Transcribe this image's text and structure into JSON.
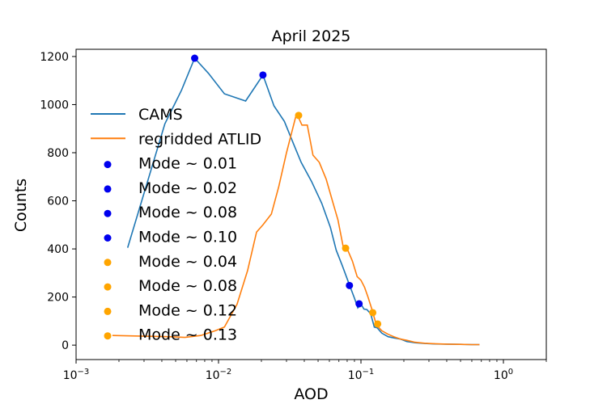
{
  "chart_data": {
    "type": "line",
    "title": "April 2025",
    "xlabel": "AOD",
    "ylabel": "Counts",
    "xscale": "log",
    "xlim": [
      0.001,
      2.0
    ],
    "ylim": [
      -60,
      1230
    ],
    "xticks": [
      {
        "value": 0.001,
        "base": "10",
        "exp": "−3"
      },
      {
        "value": 0.01,
        "base": "10",
        "exp": "−2"
      },
      {
        "value": 0.1,
        "base": "10",
        "exp": "−1"
      },
      {
        "value": 1,
        "base": "10",
        "exp": "0"
      }
    ],
    "yticks": [
      0,
      200,
      400,
      600,
      800,
      1000,
      1200
    ],
    "grid": false,
    "legend_position": "left",
    "series": [
      {
        "name": "CAMS",
        "color": "#1f77b4",
        "x": [
          0.0023,
          0.0031,
          0.0042,
          0.0055,
          0.0068,
          0.0085,
          0.011,
          0.0155,
          0.0205,
          0.0245,
          0.029,
          0.034,
          0.038,
          0.045,
          0.053,
          0.061,
          0.067,
          0.074,
          0.083,
          0.09,
          0.095,
          0.1,
          0.105,
          0.11,
          0.117,
          0.124,
          0.13,
          0.14,
          0.155,
          0.17,
          0.19,
          0.21,
          0.24,
          0.28,
          0.33,
          0.4,
          0.5,
          0.6,
          0.68
        ],
        "y": [
          405,
          660,
          920,
          1060,
          1193,
          1130,
          1045,
          1015,
          1123,
          995,
          930,
          830,
          760,
          680,
          590,
          490,
          395,
          330,
          250,
          195,
          155,
          170,
          150,
          148,
          130,
          75,
          72,
          50,
          35,
          30,
          25,
          15,
          10,
          7,
          5,
          4,
          3,
          2,
          2
        ]
      },
      {
        "name": "regridded ATLID",
        "color": "#ff7f0e",
        "x": [
          0.0018,
          0.003,
          0.0045,
          0.0058,
          0.0075,
          0.0095,
          0.011,
          0.0135,
          0.016,
          0.0185,
          0.0205,
          0.0235,
          0.0265,
          0.03,
          0.0325,
          0.035,
          0.0365,
          0.0385,
          0.042,
          0.046,
          0.051,
          0.057,
          0.063,
          0.069,
          0.075,
          0.08,
          0.087,
          0.094,
          0.1,
          0.106,
          0.112,
          0.12,
          0.128,
          0.14,
          0.155,
          0.17,
          0.19,
          0.21,
          0.24,
          0.28,
          0.33,
          0.4,
          0.5,
          0.6,
          0.68
        ],
        "y": [
          40,
          37,
          35,
          32,
          40,
          60,
          75,
          170,
          310,
          470,
          500,
          545,
          660,
          800,
          880,
          955,
          945,
          915,
          915,
          790,
          760,
          690,
          600,
          520,
          410,
          400,
          350,
          285,
          270,
          240,
          200,
          145,
          85,
          60,
          45,
          35,
          25,
          20,
          12,
          8,
          6,
          4,
          3,
          2,
          2
        ]
      }
    ],
    "markers": [
      {
        "label": "Mode ~ 0.01",
        "x": 0.0068,
        "y": 1193,
        "color": "#0000ee"
      },
      {
        "label": "Mode ~ 0.02",
        "x": 0.0205,
        "y": 1123,
        "color": "#0000ee"
      },
      {
        "label": "Mode ~ 0.08",
        "x": 0.083,
        "y": 248,
        "color": "#0000ee"
      },
      {
        "label": "Mode ~ 0.10",
        "x": 0.097,
        "y": 172,
        "color": "#0000ee"
      },
      {
        "label": "Mode ~ 0.04",
        "x": 0.0365,
        "y": 955,
        "color": "#ffa500"
      },
      {
        "label": "Mode ~ 0.08",
        "x": 0.078,
        "y": 403,
        "color": "#ffa500"
      },
      {
        "label": "Mode ~ 0.12",
        "x": 0.121,
        "y": 135,
        "color": "#ffa500"
      },
      {
        "label": "Mode ~ 0.13",
        "x": 0.131,
        "y": 88,
        "color": "#ffa500"
      }
    ]
  }
}
